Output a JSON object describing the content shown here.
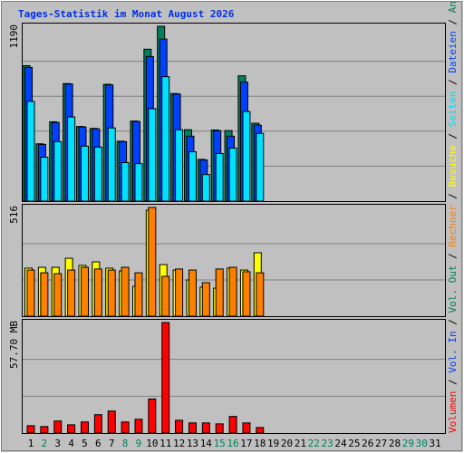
{
  "chart_data": [
    {
      "type": "bar",
      "title": "Tages-Statistik im Monat August 2026",
      "ylim": [
        0,
        1190
      ],
      "yticks": [
        1190
      ],
      "grid_divisions": 5,
      "series": [
        {
          "name": "Seiten",
          "color": "#00e0ff",
          "values": [
            679,
            299,
            405,
            573,
            374,
            368,
            498,
            262,
            255,
            629,
            847,
            486,
            336,
            181,
            324,
            361,
            610,
            461,
            null,
            null,
            null,
            null,
            null,
            null,
            null,
            null,
            null,
            null,
            null,
            null,
            null
          ]
        },
        {
          "name": "Dateien",
          "color": "#0040ff",
          "values": [
            910,
            386,
            536,
            797,
            505,
            492,
            791,
            405,
            542,
            984,
            1103,
            729,
            442,
            280,
            480,
            442,
            810,
            517,
            null,
            null,
            null,
            null,
            null,
            null,
            null,
            null,
            null,
            null,
            null,
            null,
            null
          ]
        },
        {
          "name": "Anfragen",
          "color": "#00805c",
          "values": [
            922,
            390,
            540,
            800,
            508,
            495,
            795,
            408,
            545,
            1034,
            1190,
            732,
            486,
            284,
            484,
            480,
            853,
            530,
            null,
            null,
            null,
            null,
            null,
            null,
            null,
            null,
            null,
            null,
            null,
            null,
            null
          ]
        }
      ]
    },
    {
      "type": "bar",
      "ylim": [
        0,
        516
      ],
      "yticks": [
        516
      ],
      "grid_divisions": 3,
      "series": [
        {
          "name": "Rechner",
          "color": "#ff8000",
          "values": [
            219,
            206,
            202,
            219,
            232,
            224,
            219,
            232,
            206,
            516,
            189,
            224,
            219,
            159,
            224,
            232,
            211,
            206,
            null,
            null,
            null,
            null,
            null,
            null,
            null,
            null,
            null,
            null,
            null,
            null,
            null
          ]
        },
        {
          "name": "Besuche",
          "color": "#ffff00",
          "values": [
            228,
            232,
            232,
            275,
            241,
            258,
            228,
            215,
            142,
            503,
            245,
            219,
            172,
            138,
            133,
            228,
            219,
            301,
            null,
            null,
            null,
            null,
            null,
            null,
            null,
            null,
            null,
            null,
            null,
            null,
            null
          ]
        }
      ]
    },
    {
      "type": "bar",
      "ylim": [
        0,
        57.7
      ],
      "yticks": [
        {
          "value": 57.7,
          "label": "57.70 MB"
        }
      ],
      "grid_divisions": 3,
      "categories": [
        "1",
        "2",
        "3",
        "4",
        "5",
        "6",
        "7",
        "8",
        "9",
        "10",
        "11",
        "12",
        "13",
        "14",
        "15",
        "16",
        "17",
        "18",
        "19",
        "20",
        "21",
        "22",
        "23",
        "24",
        "25",
        "26",
        "27",
        "28",
        "29",
        "30",
        "31"
      ],
      "weekend": [
        false,
        true,
        false,
        false,
        false,
        false,
        false,
        true,
        true,
        false,
        false,
        false,
        false,
        false,
        true,
        true,
        false,
        false,
        false,
        false,
        false,
        true,
        true,
        false,
        false,
        false,
        false,
        false,
        true,
        true,
        false
      ],
      "highlight_color": "#00805c",
      "legend_separator": " / ",
      "series": [
        {
          "name": "Volumen",
          "color": "#ff0000",
          "values": [
            3.85,
            3.4,
            6.3,
            4.3,
            5.8,
            9.6,
            11.5,
            5.8,
            7.2,
            17.8,
            57.7,
            6.7,
            5.3,
            5.3,
            4.8,
            8.7,
            5.3,
            2.9,
            null,
            null,
            null,
            null,
            null,
            null,
            null,
            null,
            null,
            null,
            null,
            null,
            null
          ]
        },
        {
          "name": "Vol. In",
          "color": "#0040ff",
          "values": [
            null,
            null,
            null,
            null,
            null,
            null,
            null,
            null,
            null,
            null,
            null,
            null,
            null,
            null,
            null,
            null,
            null,
            null,
            null,
            null,
            null,
            null,
            null,
            null,
            null,
            null,
            null,
            null,
            null,
            null,
            null
          ]
        },
        {
          "name": "Vol. Out",
          "color": "#00805c",
          "values": [
            null,
            null,
            null,
            null,
            null,
            null,
            null,
            null,
            null,
            null,
            null,
            null,
            null,
            null,
            null,
            null,
            null,
            null,
            null,
            null,
            null,
            null,
            null,
            null,
            null,
            null,
            null,
            null,
            null,
            null,
            null
          ]
        }
      ]
    }
  ]
}
